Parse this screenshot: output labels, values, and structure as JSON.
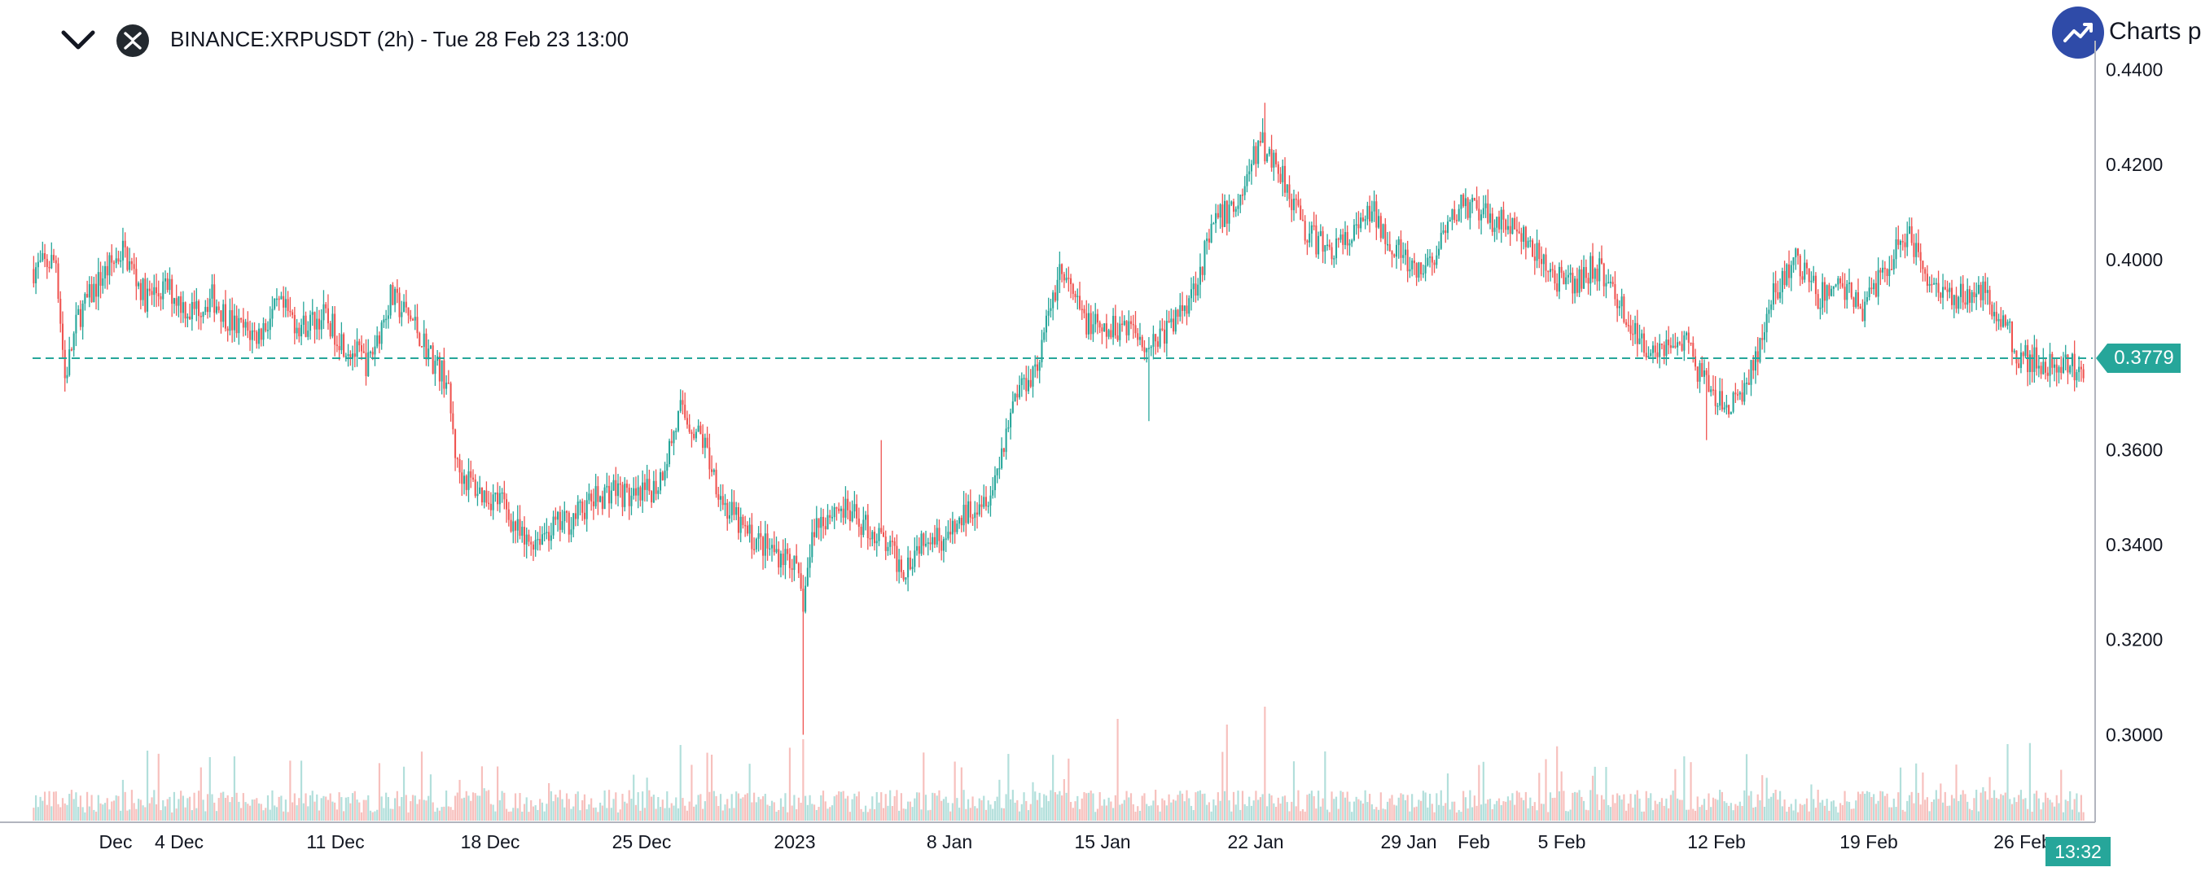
{
  "header": {
    "title": "BINANCE:XRPUSDT (2h) - Tue 28 Feb 23 13:00",
    "logo_text": "Charts p"
  },
  "colors": {
    "up": "#26a69a",
    "down": "#ef5350",
    "up_volume": "#b2dfdb",
    "down_volume": "#f7c0bd",
    "last_price_line": "#26a69a",
    "logo": "#2f4ba8"
  },
  "icons": [
    "chevron-down-icon",
    "xrp-icon",
    "trending-up-icon"
  ],
  "chart_data": {
    "type": "candlestick",
    "symbol": "XRPUSDT",
    "exchange": "BINANCE",
    "interval": "2h",
    "ylim": [
      0.285,
      0.444
    ],
    "y_ticks": [
      "0.4400",
      "0.4200",
      "0.4000",
      "0.3800",
      "0.3600",
      "0.3400",
      "0.3200",
      "0.3000"
    ],
    "x_ticks": [
      "Dec",
      "4 Dec",
      "11 Dec",
      "18 Dec",
      "25 Dec",
      "2023",
      "8 Jan",
      "15 Jan",
      "22 Jan",
      "29 Jan",
      "Feb",
      "5 Feb",
      "12 Feb",
      "19 Feb",
      "26 Feb"
    ],
    "last_price": "0.3779",
    "last_time_label": "13:32",
    "price_path": [
      [
        0,
        0.398
      ],
      [
        10,
        0.4
      ],
      [
        14,
        0.375
      ],
      [
        20,
        0.388
      ],
      [
        30,
        0.396
      ],
      [
        40,
        0.402
      ],
      [
        50,
        0.392
      ],
      [
        60,
        0.394
      ],
      [
        70,
        0.389
      ],
      [
        80,
        0.392
      ],
      [
        90,
        0.386
      ],
      [
        100,
        0.384
      ],
      [
        110,
        0.39
      ],
      [
        120,
        0.386
      ],
      [
        130,
        0.388
      ],
      [
        140,
        0.382
      ],
      [
        150,
        0.378
      ],
      [
        160,
        0.392
      ],
      [
        170,
        0.387
      ],
      [
        180,
        0.378
      ],
      [
        185,
        0.375
      ],
      [
        190,
        0.356
      ],
      [
        200,
        0.351
      ],
      [
        210,
        0.349
      ],
      [
        220,
        0.34
      ],
      [
        230,
        0.343
      ],
      [
        240,
        0.345
      ],
      [
        250,
        0.349
      ],
      [
        260,
        0.352
      ],
      [
        270,
        0.349
      ],
      [
        280,
        0.353
      ],
      [
        290,
        0.368
      ],
      [
        300,
        0.362
      ],
      [
        310,
        0.348
      ],
      [
        320,
        0.342
      ],
      [
        330,
        0.339
      ],
      [
        340,
        0.337
      ],
      [
        345,
        0.328
      ],
      [
        350,
        0.344
      ],
      [
        360,
        0.348
      ],
      [
        370,
        0.345
      ],
      [
        380,
        0.341
      ],
      [
        390,
        0.335
      ],
      [
        400,
        0.343
      ],
      [
        410,
        0.341
      ],
      [
        420,
        0.348
      ],
      [
        430,
        0.352
      ],
      [
        440,
        0.372
      ],
      [
        450,
        0.378
      ],
      [
        460,
        0.398
      ],
      [
        470,
        0.388
      ],
      [
        480,
        0.384
      ],
      [
        490,
        0.387
      ],
      [
        500,
        0.382
      ],
      [
        510,
        0.386
      ],
      [
        520,
        0.394
      ],
      [
        530,
        0.408
      ],
      [
        540,
        0.412
      ],
      [
        550,
        0.425
      ],
      [
        560,
        0.418
      ],
      [
        570,
        0.406
      ],
      [
        580,
        0.402
      ],
      [
        590,
        0.404
      ],
      [
        600,
        0.41
      ],
      [
        610,
        0.403
      ],
      [
        620,
        0.396
      ],
      [
        630,
        0.402
      ],
      [
        640,
        0.412
      ],
      [
        650,
        0.409
      ],
      [
        660,
        0.408
      ],
      [
        670,
        0.403
      ],
      [
        680,
        0.397
      ],
      [
        690,
        0.394
      ],
      [
        700,
        0.399
      ],
      [
        710,
        0.392
      ],
      [
        720,
        0.382
      ],
      [
        730,
        0.382
      ],
      [
        740,
        0.383
      ],
      [
        750,
        0.373
      ],
      [
        760,
        0.368
      ],
      [
        770,
        0.376
      ],
      [
        780,
        0.392
      ],
      [
        790,
        0.4
      ],
      [
        800,
        0.392
      ],
      [
        810,
        0.395
      ],
      [
        820,
        0.39
      ],
      [
        830,
        0.398
      ],
      [
        840,
        0.406
      ],
      [
        850,
        0.396
      ],
      [
        860,
        0.392
      ],
      [
        870,
        0.394
      ],
      [
        880,
        0.39
      ],
      [
        890,
        0.38
      ],
      [
        900,
        0.378
      ],
      [
        910,
        0.377
      ],
      [
        920,
        0.378
      ]
    ],
    "n_points": 920
  }
}
